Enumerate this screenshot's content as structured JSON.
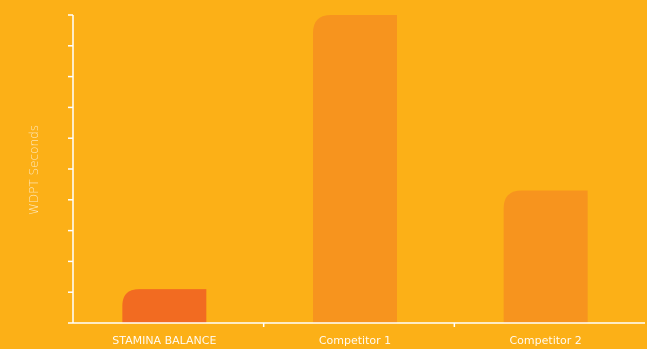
{
  "chart_data": {
    "type": "bar",
    "title": "",
    "xlabel": "",
    "ylabel": "WDPT Seconds",
    "categories": [
      "STAMINA BALANCE",
      "Competitor 1",
      "Competitor 2"
    ],
    "values": [
      1.1,
      10,
      4.3
    ],
    "ylim": [
      0,
      10
    ],
    "ytick_count": 11,
    "grid": false,
    "legend": "none",
    "tick_labels_shown": false,
    "colors": {
      "background": "#fcb017",
      "axis": "#ffffff",
      "bars": [
        "#f26b21",
        "#f7941e",
        "#f7941e"
      ]
    }
  }
}
